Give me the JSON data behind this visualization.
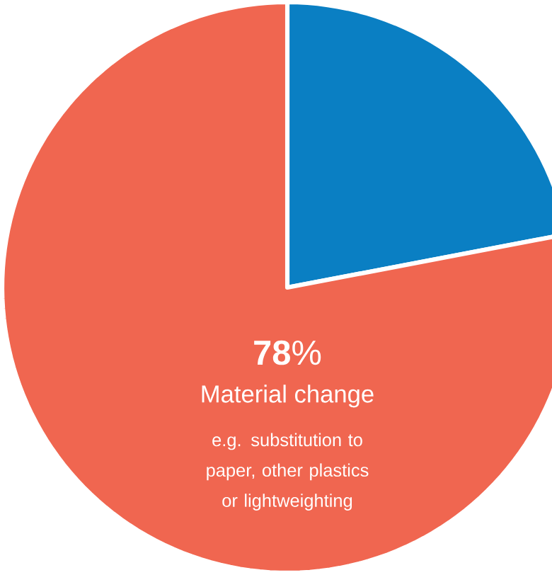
{
  "chart_data": {
    "type": "pie",
    "categories": [
      null,
      "Material change"
    ],
    "values": [
      22,
      78
    ],
    "colors": [
      "#0a7fc3",
      "#f06650"
    ],
    "value_labels": [
      null,
      "**78**%"
    ],
    "annotations": [
      "e.g. substitution to paper, other plastics or lightweighting"
    ]
  }
}
